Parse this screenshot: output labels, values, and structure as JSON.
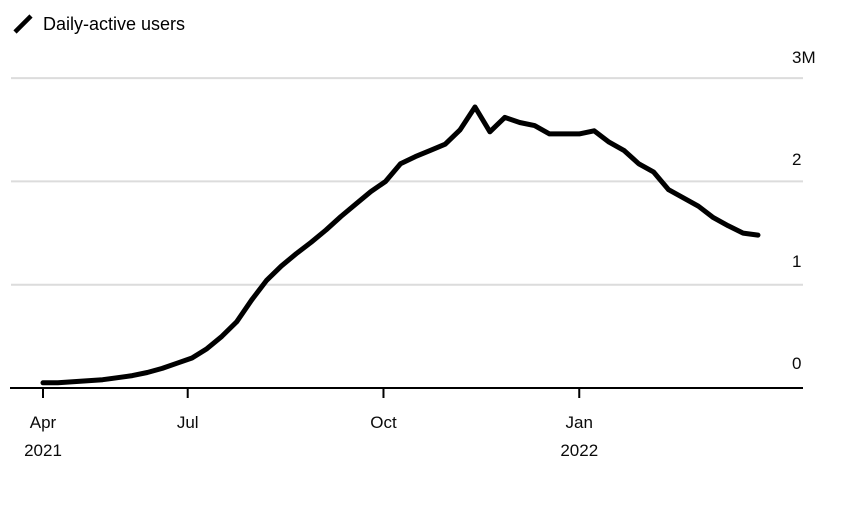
{
  "legend": {
    "label": "Daily-active users",
    "swatch_icon": "diagonal-line"
  },
  "colors": {
    "line": "#000000",
    "grid": "#dcdcdc",
    "axis": "#000000",
    "text": "#0a0a0a",
    "background": "#ffffff"
  },
  "chart_data": {
    "type": "line",
    "title": "Daily-active users",
    "series_name": "Daily-active users",
    "unit": "M",
    "grid": "horizontal",
    "legend_position": "top-left",
    "x_range": [
      "2021-04-24",
      "2022-03-26"
    ],
    "x": [
      "2021-04-24",
      "2021-05-01",
      "2021-05-08",
      "2021-05-15",
      "2021-05-22",
      "2021-05-29",
      "2021-06-05",
      "2021-06-12",
      "2021-06-19",
      "2021-06-26",
      "2021-07-03",
      "2021-07-10",
      "2021-07-17",
      "2021-07-24",
      "2021-07-31",
      "2021-08-07",
      "2021-08-14",
      "2021-08-21",
      "2021-08-28",
      "2021-09-04",
      "2021-09-11",
      "2021-09-18",
      "2021-09-25",
      "2021-10-02",
      "2021-10-09",
      "2021-10-16",
      "2021-10-23",
      "2021-10-30",
      "2021-11-06",
      "2021-11-13",
      "2021-11-20",
      "2021-11-27",
      "2021-12-04",
      "2021-12-11",
      "2021-12-18",
      "2021-12-25",
      "2022-01-01",
      "2022-01-08",
      "2022-01-15",
      "2022-01-22",
      "2022-01-29",
      "2022-02-05",
      "2022-02-12",
      "2022-02-19",
      "2022-02-26",
      "2022-03-05",
      "2022-03-12",
      "2022-03-19",
      "2022-03-26"
    ],
    "values": [
      0.05,
      0.05,
      0.06,
      0.07,
      0.08,
      0.1,
      0.12,
      0.15,
      0.19,
      0.24,
      0.29,
      0.38,
      0.5,
      0.64,
      0.85,
      1.04,
      1.18,
      1.3,
      1.41,
      1.53,
      1.66,
      1.78,
      1.9,
      2.0,
      2.17,
      2.24,
      2.3,
      2.36,
      2.5,
      2.72,
      2.48,
      2.62,
      2.57,
      2.54,
      2.46,
      2.46,
      2.46,
      2.49,
      2.38,
      2.3,
      2.17,
      2.09,
      1.92,
      1.84,
      1.76,
      1.65,
      1.57,
      1.5,
      1.48
    ],
    "y_axis": {
      "side": "right",
      "range": [
        0,
        3
      ],
      "ticks": [
        {
          "value": 0,
          "label": "0"
        },
        {
          "value": 1,
          "label": "1"
        },
        {
          "value": 2,
          "label": "2"
        },
        {
          "value": 3,
          "label": "3M"
        }
      ]
    },
    "x_axis": {
      "ticks": [
        {
          "date": "2021-04-24",
          "label": "Apr",
          "sublabel": "2021"
        },
        {
          "date": "2021-07-01",
          "label": "Jul",
          "sublabel": ""
        },
        {
          "date": "2021-10-01",
          "label": "Oct",
          "sublabel": ""
        },
        {
          "date": "2022-01-01",
          "label": "Jan",
          "sublabel": "2022"
        }
      ]
    }
  }
}
